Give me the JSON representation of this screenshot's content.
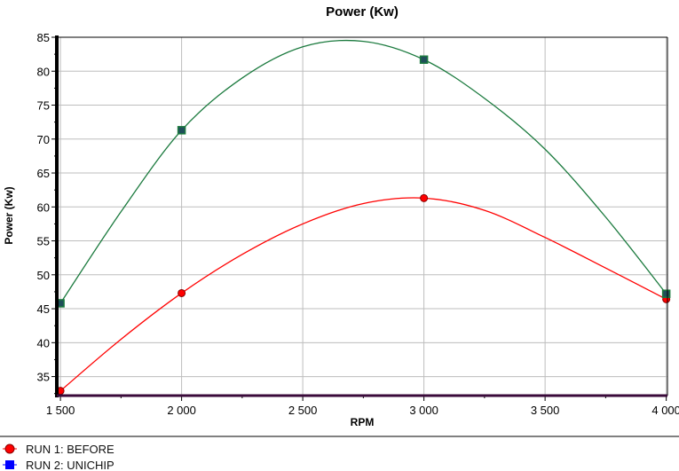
{
  "chart_data": {
    "type": "line",
    "title": "Power (Kw)",
    "xlabel": "RPM",
    "ylabel": "Power (Kw)",
    "xlim": [
      1485,
      4005
    ],
    "ylim": [
      32.2,
      85
    ],
    "x_ticks": [
      1500,
      2000,
      2500,
      3000,
      3500,
      4000
    ],
    "x_tick_labels": [
      "1 500",
      "2 000",
      "2 500",
      "3 000",
      "3 500",
      "4 000"
    ],
    "y_ticks": [
      35,
      40,
      45,
      50,
      55,
      60,
      65,
      70,
      75,
      80,
      85
    ],
    "grid": true,
    "legend_position": "bottom-left",
    "series": [
      {
        "name": "RUN 1: BEFORE",
        "color": "#ff0000",
        "marker": "circle",
        "marker_color": "#ff0000",
        "points": [
          [
            1500,
            32.9
          ],
          [
            2000,
            47.3
          ],
          [
            3000,
            61.3
          ],
          [
            4000,
            46.4
          ]
        ],
        "curve": [
          [
            1500,
            32.9
          ],
          [
            1750,
            40.5
          ],
          [
            2000,
            47.3
          ],
          [
            2250,
            53
          ],
          [
            2500,
            57.5
          ],
          [
            2750,
            60.5
          ],
          [
            3000,
            61.3
          ],
          [
            3250,
            59.5
          ],
          [
            3500,
            55.5
          ],
          [
            3750,
            51
          ],
          [
            4000,
            46.4
          ]
        ]
      },
      {
        "name": "RUN 2: UNICHIP",
        "color": "#1b7a3e",
        "marker": "square",
        "marker_color": "#1f4f5a",
        "legend_color": "#0000ff",
        "points": [
          [
            1500,
            45.8
          ],
          [
            2000,
            71.3
          ],
          [
            3000,
            81.7
          ],
          [
            4000,
            47.2
          ]
        ],
        "curve": [
          [
            1500,
            45.8
          ],
          [
            1750,
            59.3
          ],
          [
            2000,
            71.3
          ],
          [
            2250,
            79
          ],
          [
            2500,
            83.6
          ],
          [
            2750,
            84.4
          ],
          [
            3000,
            81.7
          ],
          [
            3250,
            76
          ],
          [
            3500,
            68.5
          ],
          [
            3750,
            58.5
          ],
          [
            4000,
            47.2
          ]
        ]
      }
    ]
  }
}
